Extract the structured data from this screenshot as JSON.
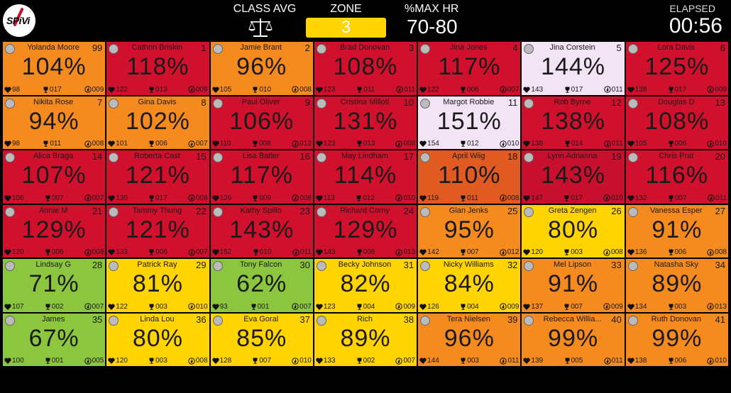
{
  "header": {
    "class_avg_label": "CLASS AVG",
    "zone_label": "ZONE",
    "zone_value": "3",
    "maxhr_label": "%MAX HR",
    "maxhr_value": "70-80",
    "elapsed_label": "ELAPSED",
    "elapsed_value": "00:56"
  },
  "logo": {
    "text": "SPiVi"
  },
  "colors": {
    "orange": "#f58a1f",
    "red": "#d0102c",
    "deep_red": "#c8102e",
    "burnt": "#e05a22",
    "yellow": "#ffd400",
    "green": "#8cc63f",
    "lavender": "#f3e4f5"
  },
  "tiles": [
    {
      "name": "Yolanda  Moore",
      "num": "99",
      "pct": "104%",
      "hr": "98",
      "trophy": "017",
      "flame": "009",
      "color": "orange"
    },
    {
      "name": "Cathrin Briskin",
      "num": "1",
      "pct": "118%",
      "hr": "122",
      "trophy": "013",
      "flame": "009",
      "color": "red"
    },
    {
      "name": "Jamie Brant",
      "num": "2",
      "pct": "96%",
      "hr": "105",
      "trophy": "010",
      "flame": "008",
      "color": "orange"
    },
    {
      "name": "Brad Donovan",
      "num": "3",
      "pct": "108%",
      "hr": "123",
      "trophy": "011",
      "flame": "011",
      "color": "red"
    },
    {
      "name": "Jina Jones",
      "num": "4",
      "pct": "117%",
      "hr": "122",
      "trophy": "006",
      "flame": "007",
      "color": "red"
    },
    {
      "name": "Jina Corstein",
      "num": "5",
      "pct": "144%",
      "hr": "143",
      "trophy": "017",
      "flame": "011",
      "color": "lavender"
    },
    {
      "name": "Lora Davis",
      "num": "6",
      "pct": "125%",
      "hr": "138",
      "trophy": "017",
      "flame": "009",
      "color": "red"
    },
    {
      "name": "Nikita Rose",
      "num": "7",
      "pct": "94%",
      "hr": "98",
      "trophy": "011",
      "flame": "008",
      "color": "orange"
    },
    {
      "name": "Gina Davis",
      "num": "8",
      "pct": "102%",
      "hr": "101",
      "trophy": "006",
      "flame": "007",
      "color": "orange"
    },
    {
      "name": "Paul Oliver",
      "num": "9",
      "pct": "106%",
      "hr": "110",
      "trophy": "008",
      "flame": "012",
      "color": "red"
    },
    {
      "name": "Cristina Milloti",
      "num": "10",
      "pct": "131%",
      "hr": "123",
      "trophy": "013",
      "flame": "008",
      "color": "red"
    },
    {
      "name": "Margot Robbie",
      "num": "11",
      "pct": "151%",
      "hr": "154",
      "trophy": "012",
      "flame": "010",
      "color": "lavender"
    },
    {
      "name": "Rob Byrne",
      "num": "12",
      "pct": "138%",
      "hr": "138",
      "trophy": "014",
      "flame": "011",
      "color": "red"
    },
    {
      "name": "Douglas D",
      "num": "13",
      "pct": "108%",
      "hr": "105",
      "trophy": "006",
      "flame": "010",
      "color": "red"
    },
    {
      "name": "Alica Braga",
      "num": "14",
      "pct": "107%",
      "hr": "106",
      "trophy": "007",
      "flame": "007",
      "color": "red"
    },
    {
      "name": "Roberta Cast",
      "num": "15",
      "pct": "121%",
      "hr": "130",
      "trophy": "017",
      "flame": "008",
      "color": "red"
    },
    {
      "name": "Lisa Batler",
      "num": "16",
      "pct": "117%",
      "hr": "126",
      "trophy": "009",
      "flame": "008",
      "color": "red"
    },
    {
      "name": "May Lindham",
      "num": "17",
      "pct": "114%",
      "hr": "113",
      "trophy": "012",
      "flame": "010",
      "color": "red"
    },
    {
      "name": "April  Wiig",
      "num": "18",
      "pct": "110%",
      "hr": "119",
      "trophy": "011",
      "flame": "008",
      "color": "burnt"
    },
    {
      "name": "Lynn Adrianna",
      "num": "19",
      "pct": "143%",
      "hr": "147",
      "trophy": "017",
      "flame": "010",
      "color": "deep_red"
    },
    {
      "name": "Chris Prat",
      "num": "20",
      "pct": "116%",
      "hr": "132",
      "trophy": "007",
      "flame": "011",
      "color": "red"
    },
    {
      "name": "Annie M",
      "num": "21",
      "pct": "129%",
      "hr": "120",
      "trophy": "006",
      "flame": "008",
      "color": "red"
    },
    {
      "name": "Tammy Thung",
      "num": "22",
      "pct": "121%",
      "hr": "133",
      "trophy": "006",
      "flame": "007",
      "color": "red"
    },
    {
      "name": "Kathy Spillo",
      "num": "23",
      "pct": "143%",
      "hr": "152",
      "trophy": "010",
      "flame": "011",
      "color": "red"
    },
    {
      "name": "Richard Comy",
      "num": "24",
      "pct": "129%",
      "hr": "143",
      "trophy": "008",
      "flame": "013",
      "color": "red"
    },
    {
      "name": "Glan Jenks",
      "num": "25",
      "pct": "95%",
      "hr": "142",
      "trophy": "007",
      "flame": "012",
      "color": "orange"
    },
    {
      "name": "Greta Zengen",
      "num": "26",
      "pct": "80%",
      "hr": "120",
      "trophy": "003",
      "flame": "008",
      "color": "yellow"
    },
    {
      "name": "Vanessa Esper",
      "num": "27",
      "pct": "91%",
      "hr": "136",
      "trophy": "006",
      "flame": "008",
      "color": "orange"
    },
    {
      "name": "Lindsay G",
      "num": "28",
      "pct": "71%",
      "hr": "107",
      "trophy": "002",
      "flame": "007",
      "color": "green"
    },
    {
      "name": "Patrick Ray",
      "num": "29",
      "pct": "81%",
      "hr": "122",
      "trophy": "003",
      "flame": "010",
      "color": "yellow"
    },
    {
      "name": "Tony Falcon",
      "num": "30",
      "pct": "62%",
      "hr": "93",
      "trophy": "001",
      "flame": "007",
      "color": "green"
    },
    {
      "name": "Becky Johnson",
      "num": "31",
      "pct": "82%",
      "hr": "123",
      "trophy": "004",
      "flame": "009",
      "color": "yellow"
    },
    {
      "name": "Nicky Williams",
      "num": "32",
      "pct": "84%",
      "hr": "126",
      "trophy": "004",
      "flame": "009",
      "color": "yellow"
    },
    {
      "name": "Mel Lipson",
      "num": "33",
      "pct": "91%",
      "hr": "137",
      "trophy": "007",
      "flame": "009",
      "color": "orange"
    },
    {
      "name": "Natasha Sky",
      "num": "34",
      "pct": "89%",
      "hr": "134",
      "trophy": "003",
      "flame": "013",
      "color": "orange"
    },
    {
      "name": "James",
      "num": "35",
      "pct": "67%",
      "hr": "100",
      "trophy": "001",
      "flame": "005",
      "color": "green"
    },
    {
      "name": "Linda Lou",
      "num": "36",
      "pct": "80%",
      "hr": "120",
      "trophy": "003",
      "flame": "008",
      "color": "yellow"
    },
    {
      "name": "Eva Goral",
      "num": "37",
      "pct": "85%",
      "hr": "128",
      "trophy": "007",
      "flame": "010",
      "color": "yellow"
    },
    {
      "name": "Rich",
      "num": "38",
      "pct": "89%",
      "hr": "133",
      "trophy": "002",
      "flame": "007",
      "color": "yellow"
    },
    {
      "name": "Tera Nielsen",
      "num": "39",
      "pct": "96%",
      "hr": "144",
      "trophy": "003",
      "flame": "011",
      "color": "orange"
    },
    {
      "name": "Rebecca Willia...",
      "num": "40",
      "pct": "99%",
      "hr": "139",
      "trophy": "005",
      "flame": "011",
      "color": "orange"
    },
    {
      "name": "Ruth Donovan",
      "num": "41",
      "pct": "99%",
      "hr": "138",
      "trophy": "006",
      "flame": "010",
      "color": "orange"
    }
  ]
}
